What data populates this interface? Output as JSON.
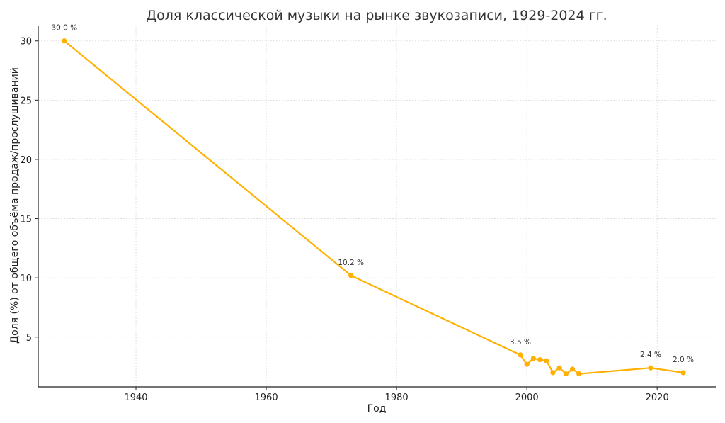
{
  "chart_data": {
    "type": "line",
    "title": "Доля классической музыки на рынке звукозаписи, 1929-2024 гг.",
    "xlabel": "Год",
    "ylabel": "Доля (%) от общего объёма продаж/прослушиваний",
    "xlim": [
      1925,
      2029
    ],
    "ylim": [
      0.8,
      31.3
    ],
    "xticks": [
      1940,
      1960,
      1980,
      2000,
      2020
    ],
    "yticks": [
      5,
      10,
      15,
      20,
      25,
      30
    ],
    "grid": true,
    "color": "#FFB000",
    "series": [
      {
        "points": [
          {
            "x": 1929,
            "y": 30.0,
            "label": "30.0 %"
          },
          {
            "x": 1973,
            "y": 10.2,
            "label": "10.2 %"
          },
          {
            "x": 1999,
            "y": 3.5,
            "label": "3.5 %"
          },
          {
            "x": 2000,
            "y": 2.7
          },
          {
            "x": 2001,
            "y": 3.2
          },
          {
            "x": 2002,
            "y": 3.1
          },
          {
            "x": 2003,
            "y": 3.0
          },
          {
            "x": 2004,
            "y": 2.0
          },
          {
            "x": 2005,
            "y": 2.4
          },
          {
            "x": 2006,
            "y": 1.9
          },
          {
            "x": 2007,
            "y": 2.3
          },
          {
            "x": 2008,
            "y": 1.9
          },
          {
            "x": 2019,
            "y": 2.4,
            "label": "2.4 %"
          },
          {
            "x": 2024,
            "y": 2.0,
            "label": "2.0 %"
          }
        ]
      }
    ]
  }
}
